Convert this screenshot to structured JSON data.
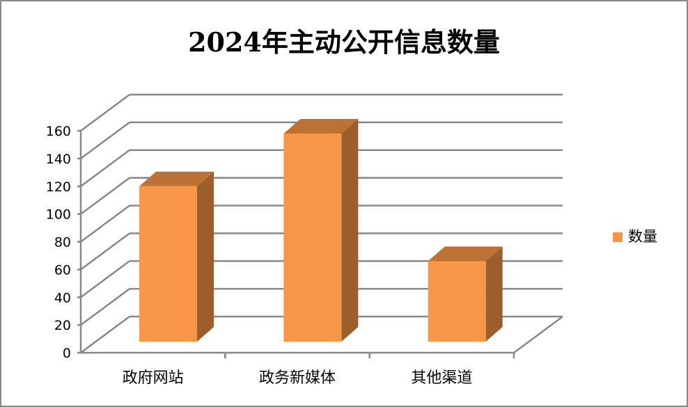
{
  "chart_data": {
    "type": "bar",
    "title": "2024年主动公开信息数量",
    "categories": [
      "政府网站",
      "政务新媒体",
      "其他渠道"
    ],
    "series": [
      {
        "name": "数量",
        "values": [
          112,
          150,
          58
        ],
        "color": "#F79646"
      }
    ],
    "xlabel": "",
    "ylabel": "",
    "ylim": [
      0,
      160
    ],
    "yticks": [
      0,
      20,
      40,
      60,
      80,
      100,
      120,
      140,
      160
    ],
    "grid": true,
    "legend": "right"
  }
}
